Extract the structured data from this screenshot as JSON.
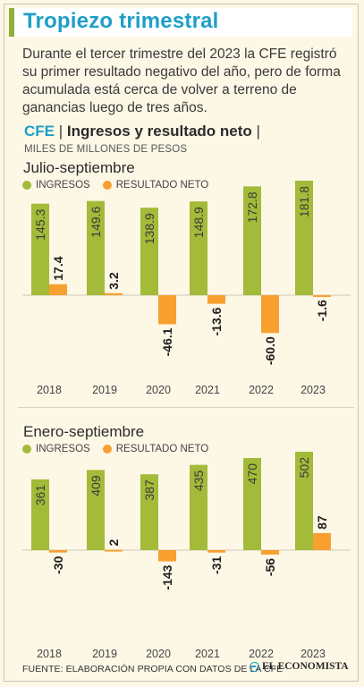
{
  "header": {
    "title": "Tropiezo trimestral",
    "intro": "Durante el tercer trimestre del 2023 la CFE registró su primer resultado negativo del año, pero de forma acumulada está cerca de volver a terreno de ganancias luego de tres años."
  },
  "chart_heading": {
    "company": "CFE",
    "separator": "|",
    "name": "Ingresos y resultado neto",
    "trailing": "|",
    "units": "MILES DE MILLONES DE PESOS"
  },
  "colors": {
    "ingresos": "#a3bb39",
    "resultado": "#f7a030",
    "accent": "#1e9fc7"
  },
  "chart_data": [
    {
      "type": "bar",
      "title": "Julio-septiembre",
      "categories": [
        "2018",
        "2019",
        "2020",
        "2021",
        "2022",
        "2023"
      ],
      "legend": [
        "INGRESOS",
        "RESULTADO NETO"
      ],
      "legend_position": "top-left",
      "series": [
        {
          "name": "INGRESOS",
          "values": [
            145.3,
            149.6,
            138.9,
            148.9,
            172.8,
            181.8
          ],
          "labels": [
            "145.3",
            "149.6",
            "138.9",
            "148.9",
            "172.8",
            "181.8"
          ]
        },
        {
          "name": "RESULTADO NETO",
          "values": [
            17.4,
            3.2,
            -46.1,
            -13.6,
            -60.0,
            -1.6
          ],
          "labels": [
            "17.4",
            "3.2",
            "-46.1",
            "-13.6",
            "-60.0",
            "-1.6"
          ]
        }
      ]
    },
    {
      "type": "bar",
      "title": "Enero-septiembre",
      "categories": [
        "2018",
        "2019",
        "2020",
        "2021",
        "2022",
        "2023"
      ],
      "legend": [
        "INGRESOS",
        "RESULTADO NETO"
      ],
      "legend_position": "top-left",
      "series": [
        {
          "name": "INGRESOS",
          "values": [
            361,
            409,
            387,
            435,
            470,
            502
          ],
          "labels": [
            "361",
            "409",
            "387",
            "435",
            "470",
            "502"
          ]
        },
        {
          "name": "RESULTADO NETO",
          "values": [
            -30,
            2,
            -143,
            -31,
            -56,
            87
          ],
          "labels": [
            "-30",
            "2",
            "-143",
            "-31",
            "-56",
            "87"
          ]
        }
      ]
    }
  ],
  "footer": {
    "source": "FUENTE: ELABORACIÓN PROPIA CON DATOS DE LA CFE",
    "brand": "EL ECONOMISTA"
  }
}
